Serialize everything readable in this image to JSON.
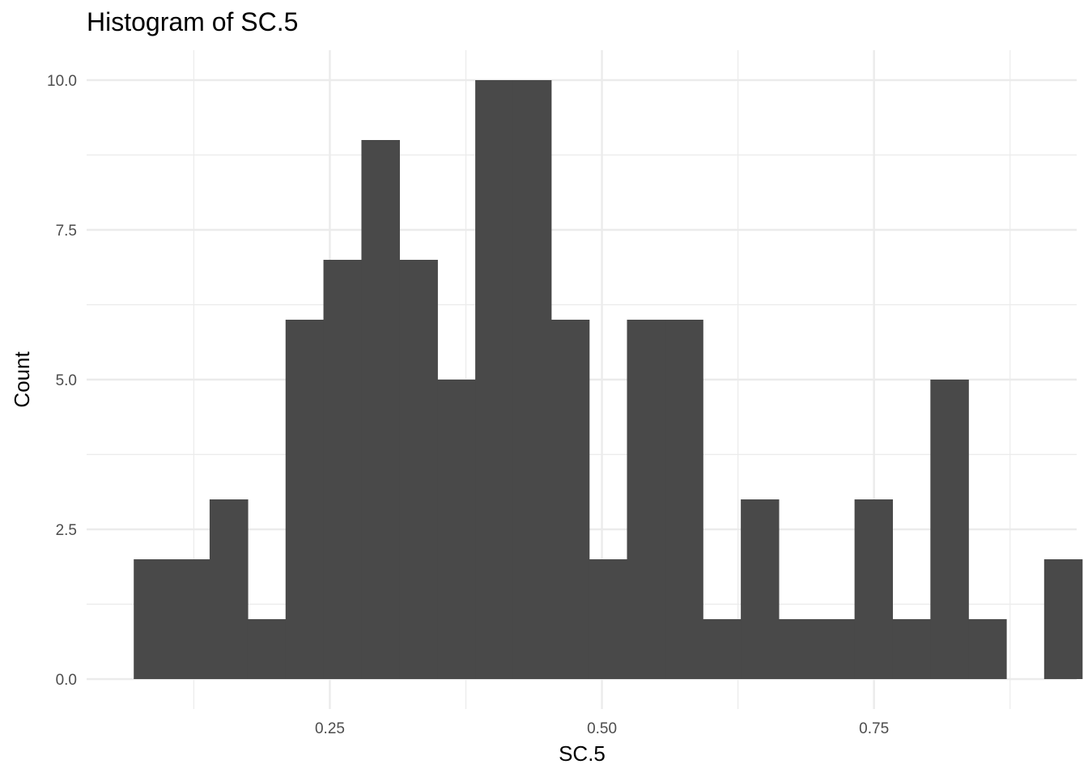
{
  "chart_data": {
    "type": "bar",
    "title": "Histogram of SC.5",
    "xlabel": "SC.5",
    "ylabel": "Count",
    "xlim": [
      0.0265,
      0.9362
    ],
    "ylim": [
      -0.5,
      10.5
    ],
    "x_ticks": [
      {
        "value": 0.25,
        "label": "0.25"
      },
      {
        "value": 0.5,
        "label": "0.50"
      },
      {
        "value": 0.75,
        "label": "0.75"
      }
    ],
    "x_minor_ticks": [
      0.125,
      0.375,
      0.625,
      0.875
    ],
    "y_ticks": [
      {
        "value": 0,
        "label": "0.0"
      },
      {
        "value": 2.5,
        "label": "2.5"
      },
      {
        "value": 5,
        "label": "5.0"
      },
      {
        "value": 7.5,
        "label": "7.5"
      },
      {
        "value": 10,
        "label": "10.0"
      }
    ],
    "y_minor_ticks": [
      1.25,
      3.75,
      6.25,
      8.75
    ],
    "bin_edges": [
      0.0698,
      0.1045,
      0.1395,
      0.1745,
      0.2093,
      0.2441,
      0.279,
      0.3139,
      0.3488,
      0.3836,
      0.4184,
      0.4533,
      0.4882,
      0.523,
      0.5578,
      0.5927,
      0.6276,
      0.6624,
      0.6973,
      0.7321,
      0.7669,
      0.8018,
      0.8367,
      0.8715,
      0.9063,
      0.9412
    ],
    "counts": [
      2,
      2,
      3,
      1,
      6,
      7,
      9,
      7,
      5,
      10,
      10,
      6,
      2,
      6,
      6,
      1,
      3,
      1,
      1,
      3,
      1,
      5,
      1,
      0,
      2
    ],
    "bar_color": "#494949",
    "grid": true,
    "legend": "none"
  }
}
